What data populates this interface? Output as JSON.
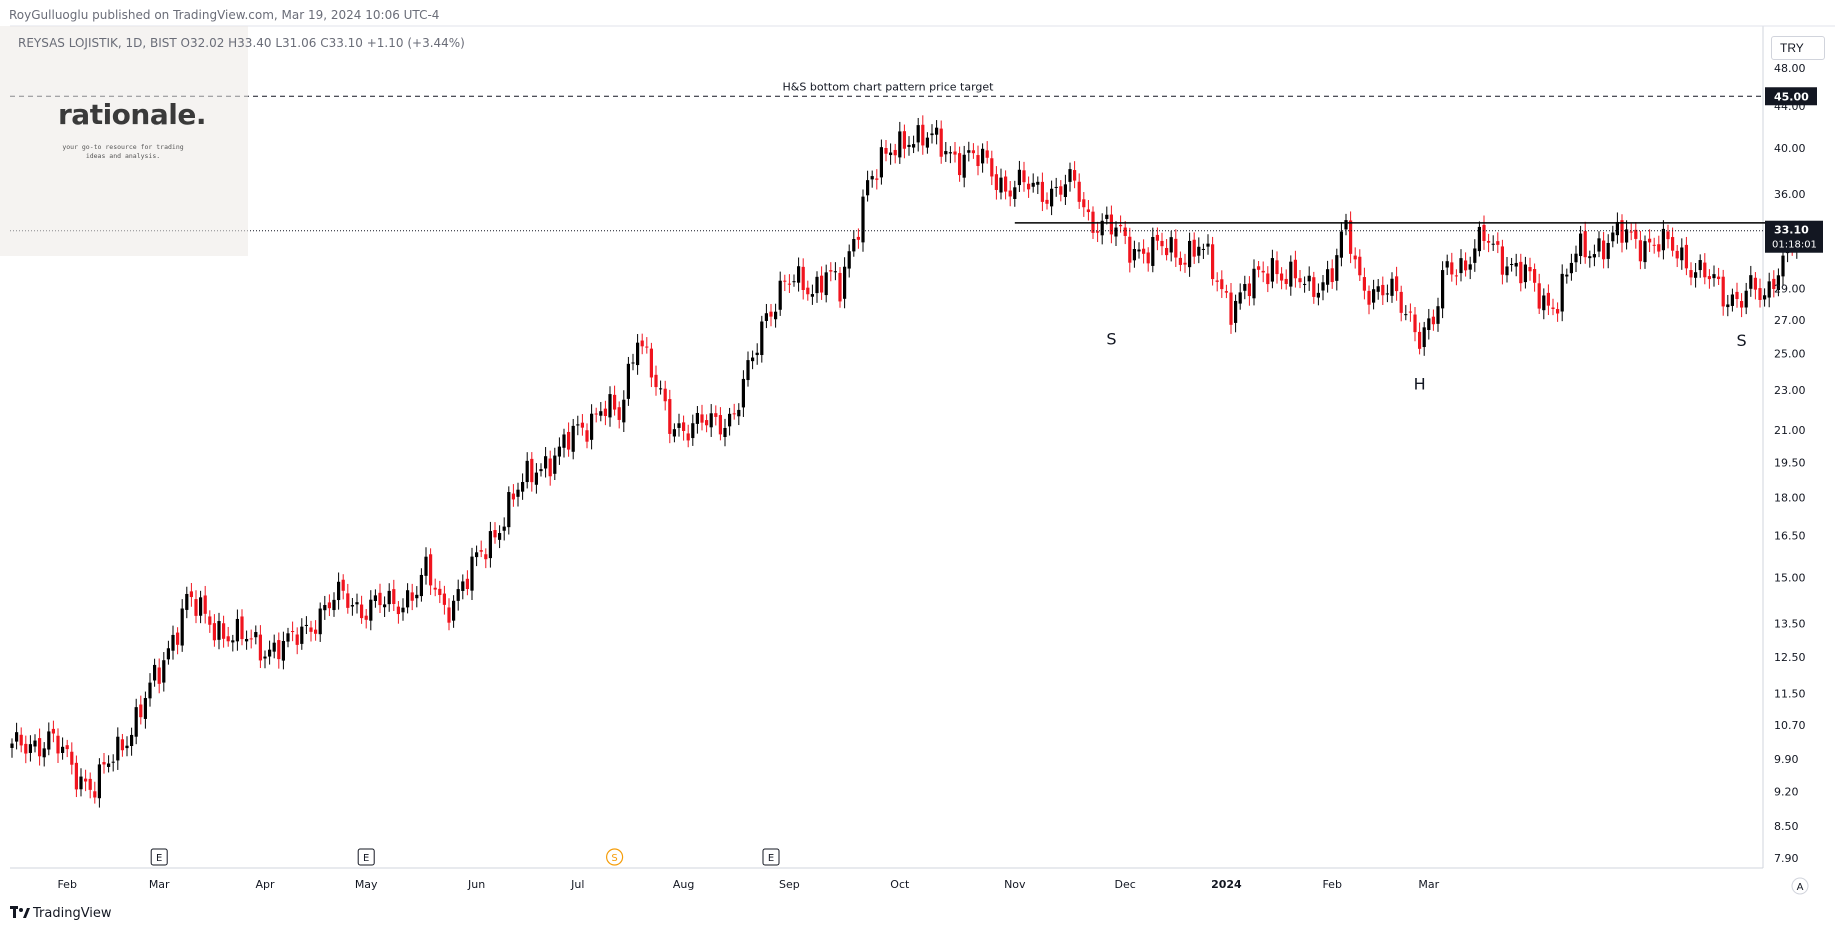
{
  "header": {
    "published": "RoyGulluoglu published on TradingView.com, Mar 19, 2024 10:06 UTC-4",
    "legend": "REYSAS LOJISTIK, 1D, BIST  O32.02  H33.40  L31.06  C33.10  +1.10 (+3.44%)"
  },
  "logo": {
    "word": "rationale.",
    "tagline_1": "your go-to resource for trading",
    "tagline_2": "ideas and analysis."
  },
  "currency": "TRY",
  "brand": "TradingView",
  "colors": {
    "up": "#000000",
    "down": "#f0141e",
    "axis_text": "#131722",
    "grid_line": "#131722"
  },
  "chart_data": {
    "type": "candlestick",
    "scale": "log",
    "ylim": [
      7.5,
      52.0
    ],
    "x_ticks": [
      "Feb",
      "Mar",
      "Apr",
      "May",
      "Jun",
      "Jul",
      "Aug",
      "Sep",
      "Oct",
      "Nov",
      "Dec",
      "2024",
      "Feb",
      "Mar"
    ],
    "y_ticks": [
      "48.00",
      "44.00",
      "40.00",
      "36.00",
      "33.00",
      "29.00",
      "27.00",
      "25.00",
      "23.00",
      "21.00",
      "19.50",
      "18.00",
      "16.50",
      "15.00",
      "13.50",
      "12.50",
      "11.50",
      "10.70",
      "9.90",
      "9.20",
      "8.50",
      "7.90"
    ],
    "target_line": {
      "value": 45.0,
      "label": "45.00",
      "annotation": "H&S bottom chart pattern price target"
    },
    "neckline": {
      "value": 33.7
    },
    "last_price": {
      "value": 33.1,
      "label": "33.10",
      "countdown": "01:18:01"
    },
    "pattern_labels": [
      {
        "text": "S",
        "date": "Nov",
        "value": 26.6
      },
      {
        "text": "H",
        "date": "Dec",
        "value": 24.0
      },
      {
        "text": "S",
        "date": "Mar",
        "value": 26.5
      }
    ],
    "event_markers": [
      {
        "text": "E",
        "month": "Mar"
      },
      {
        "text": "E",
        "month": "May"
      },
      {
        "text": "S",
        "month": "Jul"
      },
      {
        "text": "E",
        "month": "Aug"
      }
    ],
    "price_path": [
      [
        0,
        10.1
      ],
      [
        8,
        10.4
      ],
      [
        14,
        9.6
      ],
      [
        18,
        9.3
      ],
      [
        22,
        9.9
      ],
      [
        26,
        10.7
      ],
      [
        32,
        12.0
      ],
      [
        38,
        14.3
      ],
      [
        42,
        13.6
      ],
      [
        50,
        13.0
      ],
      [
        55,
        12.8
      ],
      [
        60,
        12.8
      ],
      [
        66,
        13.7
      ],
      [
        72,
        14.4
      ],
      [
        76,
        14.0
      ],
      [
        83,
        14.1
      ],
      [
        88,
        14.6
      ],
      [
        90,
        15.1
      ],
      [
        94,
        14.0
      ],
      [
        99,
        14.9
      ],
      [
        103,
        16.1
      ],
      [
        109,
        17.9
      ],
      [
        114,
        19.4
      ],
      [
        119,
        19.8
      ],
      [
        123,
        21.1
      ],
      [
        128,
        22.0
      ],
      [
        132,
        21.6
      ],
      [
        136,
        26.4
      ],
      [
        140,
        23.0
      ],
      [
        143,
        21.4
      ],
      [
        148,
        21.1
      ],
      [
        153,
        21.4
      ],
      [
        157,
        21.8
      ],
      [
        161,
        24.5
      ],
      [
        164,
        27.5
      ],
      [
        168,
        29.4
      ],
      [
        174,
        29.0
      ],
      [
        177,
        30.4
      ],
      [
        180,
        28.6
      ],
      [
        183,
        32.3
      ],
      [
        186,
        37.4
      ],
      [
        190,
        38.8
      ],
      [
        195,
        41.4
      ],
      [
        199,
        40.7
      ],
      [
        205,
        39.5
      ],
      [
        212,
        38.5
      ],
      [
        216,
        36.6
      ],
      [
        220,
        36.6
      ],
      [
        226,
        36.3
      ],
      [
        231,
        36.7
      ],
      [
        234,
        34.2
      ],
      [
        238,
        33.5
      ],
      [
        243,
        31.9
      ],
      [
        249,
        31.7
      ],
      [
        254,
        31.4
      ],
      [
        258,
        32.0
      ],
      [
        262,
        29.4
      ],
      [
        265,
        28.1
      ],
      [
        270,
        29.3
      ],
      [
        274,
        30.7
      ],
      [
        278,
        29.7
      ],
      [
        282,
        28.9
      ],
      [
        287,
        30.3
      ],
      [
        290,
        33.0
      ],
      [
        293,
        29.6
      ],
      [
        296,
        28.9
      ],
      [
        300,
        28.6
      ],
      [
        304,
        27.3
      ],
      [
        306,
        26.2
      ],
      [
        309,
        26.6
      ],
      [
        312,
        30.6
      ],
      [
        316,
        30.8
      ],
      [
        320,
        32.4
      ],
      [
        324,
        31.3
      ],
      [
        329,
        29.8
      ],
      [
        333,
        28.1
      ],
      [
        336,
        28.4
      ],
      [
        340,
        31.3
      ],
      [
        345,
        32.1
      ],
      [
        350,
        32.7
      ],
      [
        354,
        32.4
      ],
      [
        358,
        32.1
      ],
      [
        362,
        31.5
      ],
      [
        366,
        30.5
      ],
      [
        369,
        29.6
      ],
      [
        372,
        28.4
      ],
      [
        375,
        28.6
      ],
      [
        378,
        29.0
      ],
      [
        381,
        28.0
      ],
      [
        384,
        30.7
      ],
      [
        388,
        33.1
      ]
    ]
  }
}
